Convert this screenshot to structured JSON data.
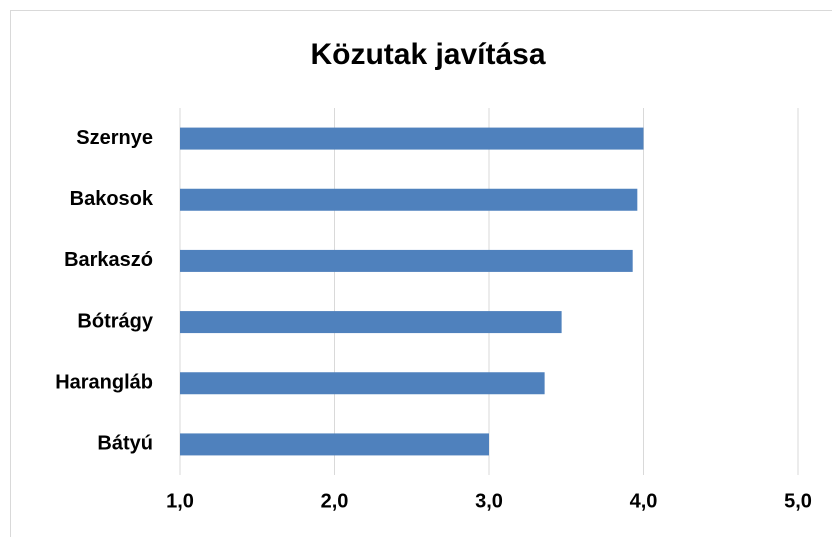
{
  "chart_data": {
    "type": "barh",
    "title": "Közutak javítása",
    "categories": [
      "Szernye",
      "Bakosok",
      "Barkaszó",
      "Bótrágy",
      "Harangláb",
      "Bátyú"
    ],
    "values": [
      4.0,
      3.96,
      3.93,
      3.47,
      3.36,
      3.0
    ],
    "color": "#4f81bd",
    "xlim": [
      1,
      5
    ],
    "xticks": [
      {
        "value": 1,
        "label": "1,0"
      },
      {
        "value": 2,
        "label": "2,0"
      },
      {
        "value": 3,
        "label": "3,0"
      },
      {
        "value": 4,
        "label": "4,0"
      },
      {
        "value": 5,
        "label": "5,0"
      }
    ],
    "grid": true
  }
}
